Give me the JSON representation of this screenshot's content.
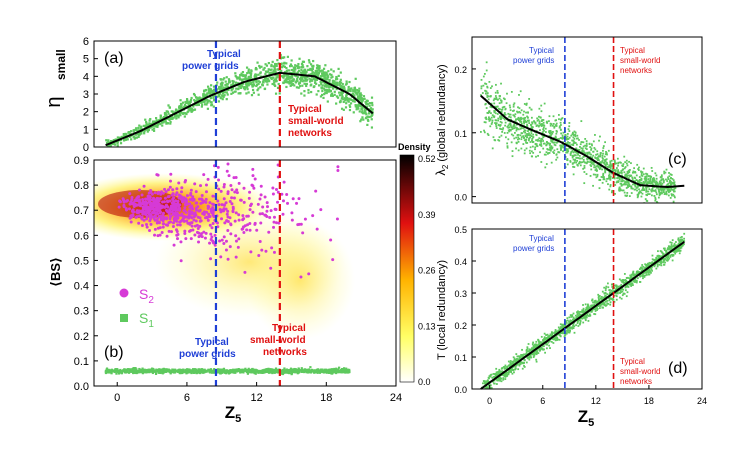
{
  "figure": {
    "colors": {
      "green": "#5ec95e",
      "magenta": "#d63ad6",
      "blue_line": "#1f3fd6",
      "red_line": "#e01010",
      "fit_line": "#000000"
    }
  },
  "chart_data": [
    {
      "id": "a",
      "type": "scatter",
      "panel_label": "(a)",
      "ylabel": "η",
      "ylabel_sub": "small",
      "xlim": [
        -2,
        24
      ],
      "ylim": [
        0,
        6
      ],
      "yticks": [
        0,
        1,
        2,
        3,
        4,
        5,
        6
      ],
      "fit_curve": {
        "x": [
          -1,
          2,
          5,
          8,
          11,
          14,
          17,
          20,
          22
        ],
        "y": [
          0.1,
          0.9,
          1.9,
          2.9,
          3.7,
          4.2,
          4.0,
          3.0,
          1.9
        ]
      },
      "vlines": [
        {
          "x": 8.5,
          "label": [
            "Typical",
            "power grids"
          ]
        },
        {
          "x": 14,
          "label": [
            "Typical",
            "small-world",
            "networks"
          ]
        }
      ]
    },
    {
      "id": "b",
      "type": "scatter",
      "panel_label": "(b)",
      "xlabel": "Z",
      "xlabel_sub": "5",
      "ylabel": "⟨BS⟩",
      "xlim": [
        -2,
        24
      ],
      "ylim": [
        0.0,
        0.9
      ],
      "xticks": [
        0,
        6,
        12,
        18,
        24
      ],
      "yticks": [
        0.0,
        0.1,
        0.2,
        0.3,
        0.4,
        0.5,
        0.6,
        0.7,
        0.8,
        0.9
      ],
      "series": [
        {
          "name": "S",
          "name_sub": "2",
          "marker": "circle",
          "y_center": 0.72
        },
        {
          "name": "S",
          "name_sub": "1",
          "marker": "square",
          "y_center": 0.06
        }
      ],
      "colorbar": {
        "title": "Density",
        "ticks": [
          "0.52",
          "0.39",
          "0.26",
          "0.13",
          "0.0"
        ],
        "range": [
          0.0,
          0.52
        ]
      },
      "vlines": [
        {
          "x": 8.5,
          "label": [
            "Typical",
            "power grids"
          ]
        },
        {
          "x": 14,
          "label": [
            "Typical",
            "small-world",
            "networks"
          ]
        }
      ]
    },
    {
      "id": "c",
      "type": "scatter",
      "panel_label": "(c)",
      "ylabel": "λ",
      "ylabel_sub": "2",
      "ylabel_rest": " (global redundancy)",
      "xlim": [
        -2,
        24
      ],
      "ylim": [
        -0.01,
        0.25
      ],
      "yticks": [
        0.0,
        0.1,
        0.2
      ],
      "fit_curve": {
        "x": [
          -1,
          2,
          5,
          8,
          11,
          14,
          17,
          20,
          22
        ],
        "y": [
          0.158,
          0.121,
          0.103,
          0.086,
          0.063,
          0.037,
          0.018,
          0.015,
          0.017
        ]
      },
      "vlines": [
        {
          "x": 8.5,
          "label": [
            "Typical",
            "power grids"
          ]
        },
        {
          "x": 14,
          "label": [
            "Typical",
            "small-world",
            "networks"
          ]
        }
      ]
    },
    {
      "id": "d",
      "type": "scatter",
      "panel_label": "(d)",
      "xlabel": "Z",
      "xlabel_sub": "5",
      "ylabel": "T (local redundancy)",
      "xlim": [
        -2,
        24
      ],
      "ylim": [
        0.0,
        0.5
      ],
      "xticks": [
        0,
        6,
        12,
        18,
        24
      ],
      "yticks": [
        0.0,
        0.1,
        0.2,
        0.3,
        0.4,
        0.5
      ],
      "fit_curve": {
        "x": [
          -1,
          22
        ],
        "y": [
          0.0,
          0.46
        ]
      },
      "vlines": [
        {
          "x": 8.5,
          "label": [
            "Typical",
            "power grids"
          ]
        },
        {
          "x": 14,
          "label": [
            "Typical",
            "small-world",
            "networks"
          ]
        }
      ]
    }
  ]
}
